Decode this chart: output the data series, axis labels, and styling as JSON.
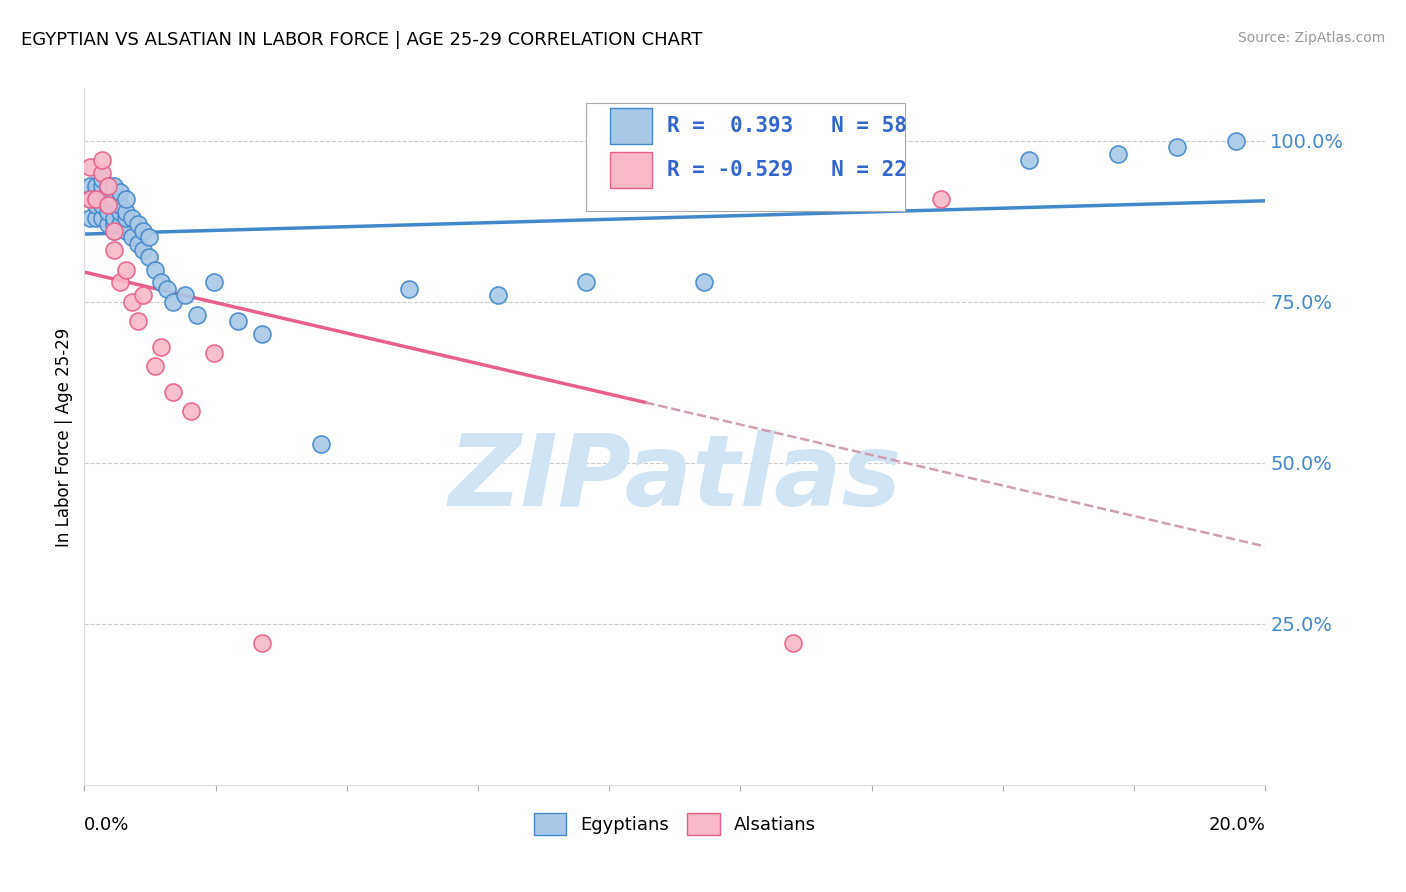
{
  "title": "EGYPTIAN VS ALSATIAN IN LABOR FORCE | AGE 25-29 CORRELATION CHART",
  "source": "Source: ZipAtlas.com",
  "ylabel": "In Labor Force | Age 25-29",
  "ytick_labels": [
    "100.0%",
    "75.0%",
    "50.0%",
    "25.0%"
  ],
  "ytick_values": [
    1.0,
    0.75,
    0.5,
    0.25
  ],
  "r_egyptian": 0.393,
  "n_egyptian": 58,
  "r_alsatian": -0.529,
  "n_alsatian": 22,
  "xmin": 0.0,
  "xmax": 0.2,
  "ymin": 0.0,
  "ymax": 1.08,
  "legend_label_egyptian": "Egyptians",
  "legend_label_alsatian": "Alsatians",
  "color_egyptian": "#a8c8e8",
  "color_alsatian": "#f8b8c8",
  "line_color_egyptian": "#4488cc",
  "line_color_alsatian": "#e8608a",
  "watermark_text": "ZIPatlas",
  "watermark_color": "#d0e4f4",
  "egyptian_x": [
    0.001,
    0.001,
    0.001,
    0.002,
    0.002,
    0.002,
    0.002,
    0.003,
    0.003,
    0.003,
    0.003,
    0.003,
    0.003,
    0.004,
    0.004,
    0.004,
    0.004,
    0.004,
    0.005,
    0.005,
    0.005,
    0.005,
    0.005,
    0.005,
    0.006,
    0.006,
    0.006,
    0.006,
    0.007,
    0.007,
    0.007,
    0.007,
    0.008,
    0.008,
    0.009,
    0.009,
    0.01,
    0.01,
    0.011,
    0.011,
    0.012,
    0.013,
    0.014,
    0.015,
    0.017,
    0.019,
    0.022,
    0.026,
    0.03,
    0.04,
    0.055,
    0.07,
    0.085,
    0.105,
    0.16,
    0.175,
    0.185,
    0.195
  ],
  "egyptian_y": [
    0.88,
    0.91,
    0.93,
    0.88,
    0.9,
    0.92,
    0.93,
    0.88,
    0.9,
    0.91,
    0.92,
    0.93,
    0.94,
    0.87,
    0.89,
    0.91,
    0.92,
    0.93,
    0.86,
    0.87,
    0.88,
    0.9,
    0.91,
    0.93,
    0.87,
    0.89,
    0.9,
    0.92,
    0.86,
    0.88,
    0.89,
    0.91,
    0.85,
    0.88,
    0.84,
    0.87,
    0.83,
    0.86,
    0.82,
    0.85,
    0.8,
    0.78,
    0.77,
    0.75,
    0.76,
    0.73,
    0.78,
    0.72,
    0.7,
    0.53,
    0.77,
    0.76,
    0.78,
    0.78,
    0.97,
    0.98,
    0.99,
    1.0
  ],
  "alsatian_x": [
    0.001,
    0.001,
    0.002,
    0.003,
    0.003,
    0.004,
    0.004,
    0.005,
    0.005,
    0.006,
    0.007,
    0.008,
    0.009,
    0.01,
    0.012,
    0.013,
    0.015,
    0.018,
    0.022,
    0.03,
    0.12,
    0.145
  ],
  "alsatian_y": [
    0.91,
    0.96,
    0.91,
    0.95,
    0.97,
    0.9,
    0.93,
    0.83,
    0.86,
    0.78,
    0.8,
    0.75,
    0.72,
    0.76,
    0.65,
    0.68,
    0.61,
    0.58,
    0.67,
    0.22,
    0.22,
    0.91
  ]
}
